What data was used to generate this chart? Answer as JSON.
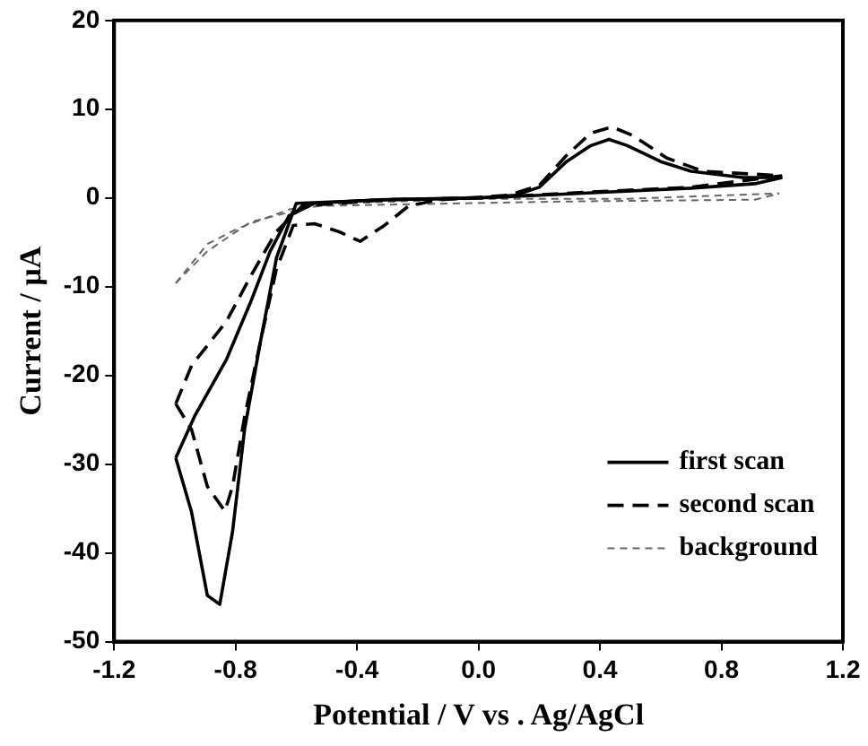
{
  "chart_data": {
    "type": "line",
    "xlabel": "Potential / V vs . Ag/AgCl",
    "ylabel": "Current / µA",
    "xlim": [
      -1.2,
      1.2
    ],
    "xticks": [
      -1.2,
      -0.8,
      -0.4,
      {
        "value": 0,
        "label": "0.0"
      },
      0.4,
      0.8,
      1.2
    ],
    "ylim": [
      -50,
      20
    ],
    "yticks": [
      -50,
      -40,
      -30,
      -20,
      -10,
      0,
      10,
      20
    ],
    "grid": false,
    "legend": "bottom right",
    "marker": "none",
    "series": [
      {
        "name": "first scan",
        "color": "#000000",
        "line_style": "solid",
        "x": [
          -0.997,
          -0.935,
          -0.83,
          -0.75,
          -0.686,
          -0.624,
          -0.54,
          -0.33,
          0.0,
          0.08,
          0.39,
          0.7,
          0.91,
          1.0
        ],
        "values": [
          -29.3,
          -24.6,
          -18.2,
          -11.7,
          -6.0,
          -2.0,
          -0.6,
          -0.2,
          0.0,
          0.1,
          0.6,
          1.1,
          1.6,
          2.3
        ]
      },
      {
        "color": "#000000",
        "line_style": "solid",
        "x": [
          -0.997,
          -0.945,
          -0.893,
          -0.852,
          -0.81,
          -0.77,
          -0.717,
          -0.665,
          -0.6,
          -0.3,
          0.0,
          0.12,
          0.2,
          0.29,
          0.37,
          0.43,
          0.49,
          0.6,
          0.7,
          0.87,
          1.0
        ],
        "values": [
          -29.3,
          -35.4,
          -44.8,
          -45.8,
          -37.6,
          -26,
          -16,
          -6.7,
          -0.6,
          -0.2,
          0.0,
          0.3,
          1.2,
          4.1,
          5.9,
          6.6,
          5.9,
          4.1,
          3.0,
          2.3,
          2.3
        ]
      },
      {
        "name": "second scan",
        "color": "#000000",
        "line_style": "dashed",
        "x": [
          -0.997,
          -0.945,
          -0.83,
          -0.75,
          -0.666,
          -0.58,
          -0.3,
          0.0,
          0.39,
          0.7,
          1.0
        ],
        "values": [
          -23.2,
          -18.9,
          -13.9,
          -8.8,
          -3.8,
          -0.9,
          -0.2,
          0.0,
          0.7,
          1.2,
          2.5
        ]
      },
      {
        "color": "#000000",
        "line_style": "dashed",
        "x": [
          -0.997,
          -0.945,
          -0.893,
          -0.835,
          -0.81,
          -0.77,
          -0.717,
          -0.666,
          -0.61,
          -0.54,
          -0.46,
          -0.39,
          -0.31,
          -0.23,
          -0.13,
          0.1,
          0.2,
          0.29,
          0.37,
          0.44,
          0.51,
          0.62,
          0.74,
          1.0
        ],
        "values": [
          -23.2,
          -26.1,
          -32.5,
          -35.3,
          -32.5,
          -24.6,
          -16,
          -8.1,
          -3.1,
          -2.9,
          -3.8,
          -4.9,
          -3.1,
          -0.9,
          -0.2,
          0.3,
          1.4,
          4.8,
          7.3,
          8.0,
          7.0,
          4.5,
          3.0,
          2.5
        ]
      },
      {
        "name": "background",
        "color": "#666666",
        "line_style": "dashed",
        "x": [
          -0.997,
          -0.893,
          -0.79,
          -0.624,
          -0.44,
          0.0,
          0.49,
          0.99
        ],
        "values": [
          -9.6,
          -5.2,
          -3.4,
          -1.3,
          -0.6,
          -0.1,
          -0.1,
          0.5
        ]
      },
      {
        "color": "#666666",
        "line_style": "dashed",
        "x": [
          -0.997,
          -0.893,
          -0.75,
          -0.54,
          0.29,
          0.91,
          0.99
        ],
        "values": [
          -9.6,
          -6.0,
          -2.7,
          -0.9,
          -0.4,
          -0.2,
          0.5
        ]
      }
    ]
  }
}
